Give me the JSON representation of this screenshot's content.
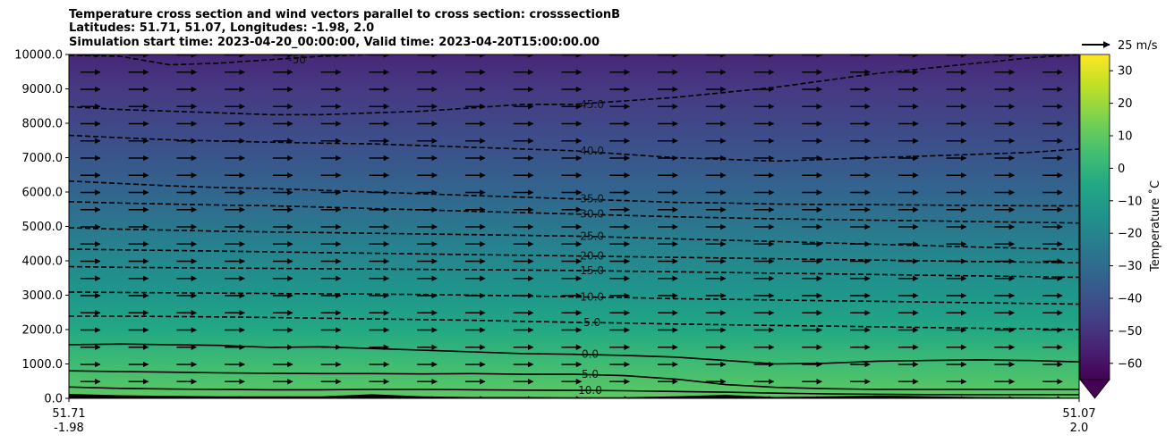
{
  "chart_data": {
    "type": "contour",
    "title_lines": [
      "Temperature cross section and wind vectors parallel to cross section: crosssectionB",
      "Latitudes: 51.71, 51.07, Longitudes: -1.98, 2.0",
      "Simulation start time: 2023-04-20_00:00:00, Valid time: 2023-04-20T15:00:00.00"
    ],
    "xlabel": "",
    "ylabel": "",
    "ylim": [
      0,
      10000
    ],
    "y_ticks": [
      0,
      1000,
      2000,
      3000,
      4000,
      5000,
      6000,
      7000,
      8000,
      9000,
      10000
    ],
    "y_tick_labels": [
      "0.0",
      "1000.0",
      "2000.0",
      "3000.0",
      "4000.0",
      "5000.0",
      "6000.0",
      "7000.0",
      "8000.0",
      "9000.0",
      "10000.0"
    ],
    "x_start_label": [
      "51.71",
      "-1.98"
    ],
    "x_end_label": [
      "51.07",
      "2.0"
    ],
    "colorbar": {
      "label": "Temperature $^\\circ$C",
      "label_display": "Temperature ˚C",
      "min": -65,
      "max": 35,
      "ticks": [
        -60,
        -50,
        -40,
        -30,
        -20,
        -10,
        0,
        10,
        20,
        30
      ],
      "tick_labels": [
        "−60",
        "−50",
        "−40",
        "−30",
        "−20",
        "−10",
        "0",
        "10",
        "20",
        "30"
      ],
      "extend": "min",
      "colormap": "viridis"
    },
    "quiver_key": {
      "label": "25 m/s"
    },
    "contours": [
      {
        "level": "-50.0",
        "label": "-50",
        "dashed": true,
        "heights": [
          9980,
          9950,
          9700,
          9750,
          9850,
          9950,
          10000,
          10050,
          10100,
          10100,
          10100,
          10100,
          10100,
          10100,
          10100,
          10100,
          10100,
          10100,
          10100,
          10100,
          10100
        ]
      },
      {
        "level": "-45.0",
        "label": "-45.0",
        "dashed": true,
        "heights": [
          8480,
          8400,
          8350,
          8300,
          8250,
          8250,
          8300,
          8350,
          8450,
          8550,
          8550,
          8650,
          8750,
          8900,
          9050,
          9250,
          9450,
          9600,
          9750,
          9900,
          10000
        ]
      },
      {
        "level": "-40.0",
        "label": "-40.0",
        "dashed": true,
        "heights": [
          7650,
          7580,
          7520,
          7480,
          7450,
          7420,
          7400,
          7350,
          7300,
          7250,
          7200,
          7100,
          7000,
          6950,
          6900,
          6950,
          7000,
          7050,
          7100,
          7150,
          7250
        ]
      },
      {
        "level": "-35.0",
        "label": "-35.0",
        "dashed": true,
        "heights": [
          6320,
          6250,
          6180,
          6130,
          6100,
          6050,
          6000,
          5950,
          5900,
          5850,
          5800,
          5750,
          5700,
          5680,
          5650,
          5640,
          5630,
          5620,
          5610,
          5600,
          5600
        ]
      },
      {
        "level": "-30.0",
        "label": "-30.0",
        "dashed": true,
        "heights": [
          5720,
          5680,
          5650,
          5620,
          5600,
          5560,
          5520,
          5480,
          5440,
          5400,
          5360,
          5320,
          5280,
          5250,
          5220,
          5200,
          5180,
          5160,
          5140,
          5120,
          5100
        ]
      },
      {
        "level": "-25.0",
        "label": "-25.0",
        "dashed": true,
        "heights": [
          4960,
          4920,
          4890,
          4860,
          4840,
          4820,
          4800,
          4780,
          4760,
          4740,
          4720,
          4680,
          4640,
          4600,
          4560,
          4520,
          4480,
          4440,
          4400,
          4360,
          4330
        ]
      },
      {
        "level": "-20.0",
        "label": "-20.0",
        "dashed": true,
        "heights": [
          4340,
          4320,
          4300,
          4280,
          4260,
          4240,
          4220,
          4200,
          4180,
          4160,
          4140,
          4120,
          4100,
          4080,
          4060,
          4040,
          4020,
          4000,
          3980,
          3960,
          3940
        ]
      },
      {
        "level": "-15.0",
        "label": "-15.0",
        "dashed": true,
        "heights": [
          3830,
          3810,
          3800,
          3790,
          3780,
          3770,
          3760,
          3750,
          3740,
          3730,
          3720,
          3700,
          3680,
          3660,
          3640,
          3620,
          3600,
          3580,
          3560,
          3540,
          3520
        ]
      },
      {
        "level": "-10.0",
        "label": "-10.0",
        "dashed": true,
        "heights": [
          3090,
          3080,
          3070,
          3060,
          3050,
          3040,
          3030,
          3020,
          3000,
          2980,
          2950,
          2930,
          2900,
          2880,
          2860,
          2840,
          2820,
          2800,
          2780,
          2760,
          2740
        ]
      },
      {
        "level": "-5.0",
        "label": "-5.0",
        "dashed": true,
        "heights": [
          2390,
          2390,
          2380,
          2370,
          2350,
          2330,
          2310,
          2290,
          2270,
          2240,
          2210,
          2190,
          2160,
          2140,
          2120,
          2100,
          2080,
          2060,
          2040,
          2020,
          2000
        ]
      },
      {
        "level": "0.0",
        "label": "0.0",
        "dashed": false,
        "heights": [
          1560,
          1580,
          1560,
          1540,
          1480,
          1500,
          1450,
          1400,
          1350,
          1300,
          1280,
          1250,
          1200,
          1100,
          1000,
          1020,
          1080,
          1100,
          1120,
          1100,
          1060
        ]
      },
      {
        "level": "5.0",
        "label": "5.0",
        "dashed": false,
        "heights": [
          800,
          780,
          760,
          740,
          730,
          720,
          720,
          710,
          720,
          700,
          700,
          660,
          560,
          400,
          320,
          280,
          260,
          260,
          260,
          260,
          260
        ]
      },
      {
        "level": "10.0",
        "label": "10.0",
        "dashed": false,
        "heights": [
          330,
          290,
          270,
          260,
          250,
          250,
          260,
          260,
          250,
          240,
          230,
          220,
          200,
          180,
          150,
          130,
          120,
          110,
          110,
          110,
          110
        ]
      }
    ],
    "terrain_heights": [
      130,
      90,
      70,
      60,
      60,
      60,
      120,
      60,
      40,
      40,
      30,
      30,
      60,
      100,
      40,
      60,
      80,
      60,
      40,
      30,
      20
    ]
  }
}
